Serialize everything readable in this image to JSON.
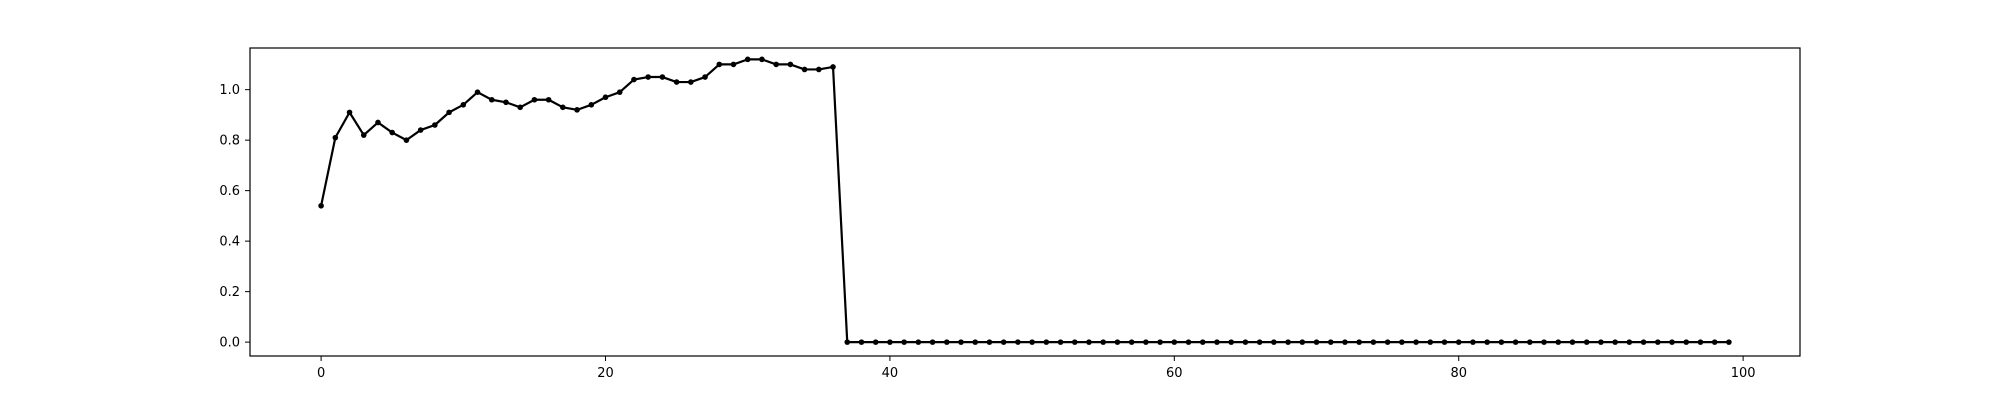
{
  "chart_data": {
    "type": "line",
    "title": "",
    "xlabel": "",
    "ylabel": "",
    "xlim": [
      -5,
      104
    ],
    "ylim": [
      -0.055,
      1.165
    ],
    "xticks": [
      0,
      20,
      40,
      60,
      80,
      100
    ],
    "yticks": [
      0.0,
      0.2,
      0.4,
      0.6,
      0.8,
      1.0
    ],
    "xtick_labels": [
      "0",
      "20",
      "40",
      "60",
      "80",
      "100"
    ],
    "ytick_labels": [
      "0.0",
      "0.2",
      "0.4",
      "0.6",
      "0.8",
      "1.0"
    ],
    "grid": false,
    "line_color": "#000000",
    "marker": "dot",
    "series": [
      {
        "x": [
          0,
          1,
          2,
          3,
          4,
          5,
          6,
          7,
          8,
          9,
          10,
          11,
          12,
          13,
          14,
          15,
          16,
          17,
          18,
          19,
          20,
          21,
          22,
          23,
          24,
          25,
          26,
          27,
          28,
          29,
          30,
          31,
          32,
          33,
          34,
          35,
          36,
          37,
          38,
          39,
          40,
          41,
          42,
          43,
          44,
          45,
          46,
          47,
          48,
          49,
          50,
          51,
          52,
          53,
          54,
          55,
          56,
          57,
          58,
          59,
          60,
          61,
          62,
          63,
          64,
          65,
          66,
          67,
          68,
          69,
          70,
          71,
          72,
          73,
          74,
          75,
          76,
          77,
          78,
          79,
          80,
          81,
          82,
          83,
          84,
          85,
          86,
          87,
          88,
          89,
          90,
          91,
          92,
          93,
          94,
          95,
          96,
          97,
          98,
          99
        ],
        "values": [
          0.54,
          0.81,
          0.91,
          0.82,
          0.87,
          0.83,
          0.8,
          0.84,
          0.86,
          0.91,
          0.94,
          0.99,
          0.96,
          0.95,
          0.93,
          0.96,
          0.96,
          0.93,
          0.92,
          0.94,
          0.97,
          0.99,
          1.04,
          1.05,
          1.05,
          1.03,
          1.03,
          1.05,
          1.1,
          1.1,
          1.12,
          1.12,
          1.1,
          1.1,
          1.08,
          1.08,
          1.09,
          0.0,
          0.0,
          0.0,
          0.0,
          0.0,
          0.0,
          0.0,
          0.0,
          0.0,
          0.0,
          0.0,
          0.0,
          0.0,
          0.0,
          0.0,
          0.0,
          0.0,
          0.0,
          0.0,
          0.0,
          0.0,
          0.0,
          0.0,
          0.0,
          0.0,
          0.0,
          0.0,
          0.0,
          0.0,
          0.0,
          0.0,
          0.0,
          0.0,
          0.0,
          0.0,
          0.0,
          0.0,
          0.0,
          0.0,
          0.0,
          0.0,
          0.0,
          0.0,
          0.0,
          0.0,
          0.0,
          0.0,
          0.0,
          0.0,
          0.0,
          0.0,
          0.0,
          0.0,
          0.0,
          0.0,
          0.0,
          0.0,
          0.0,
          0.0,
          0.0,
          0.0,
          0.0,
          0.0
        ]
      }
    ]
  }
}
